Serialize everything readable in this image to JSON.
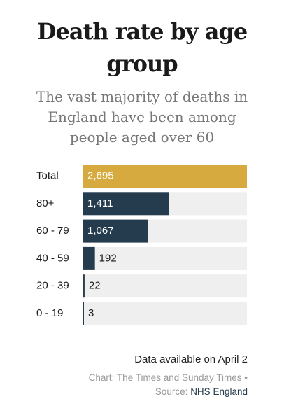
{
  "chart_data": {
    "type": "hbar",
    "title": "Death rate by age group",
    "subtitle": "The vast majority of deaths in England have been among people aged over 60",
    "categories": [
      "Total",
      "80+",
      "60 - 79",
      "40 - 59",
      "20 - 39",
      "0 - 19"
    ],
    "values": [
      2695,
      1411,
      1067,
      192,
      22,
      3
    ],
    "value_labels": [
      "2,695",
      "1,411",
      "1,067",
      "192",
      "22",
      "3"
    ],
    "colors": [
      "#d6aa3e",
      "#253c4f",
      "#253c4f",
      "#253c4f",
      "#253c4f",
      "#253c4f"
    ],
    "track_color": "#efefef",
    "xlim": [
      0,
      2695
    ],
    "note": "Data available on April 2",
    "credit": "Chart: The Times and Sunday Times •",
    "source_label": "Source:",
    "source": "NHS England"
  }
}
